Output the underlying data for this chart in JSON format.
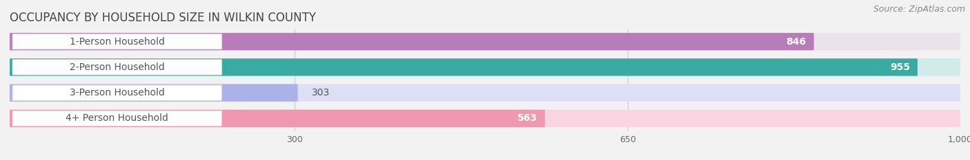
{
  "title": "OCCUPANCY BY HOUSEHOLD SIZE IN WILKIN COUNTY",
  "source": "Source: ZipAtlas.com",
  "categories": [
    "1-Person Household",
    "2-Person Household",
    "3-Person Household",
    "4+ Person Household"
  ],
  "values": [
    846,
    955,
    303,
    563
  ],
  "bar_colors": [
    "#b87db8",
    "#3aaba0",
    "#aab2e8",
    "#f097b2"
  ],
  "bar_bg_colors": [
    "#ebe2eb",
    "#d0ebe9",
    "#dcdff5",
    "#f8d5e0"
  ],
  "xlim": [
    0,
    1000
  ],
  "xticks": [
    300,
    650,
    1000
  ],
  "xtick_labels": [
    "300",
    "650",
    "1,000"
  ],
  "value_label_color": "#ffffff",
  "label_color": "#555555",
  "title_color": "#444444",
  "title_fontsize": 12,
  "source_fontsize": 9,
  "label_fontsize": 10,
  "value_fontsize": 10,
  "background_color": "#f2f2f2"
}
